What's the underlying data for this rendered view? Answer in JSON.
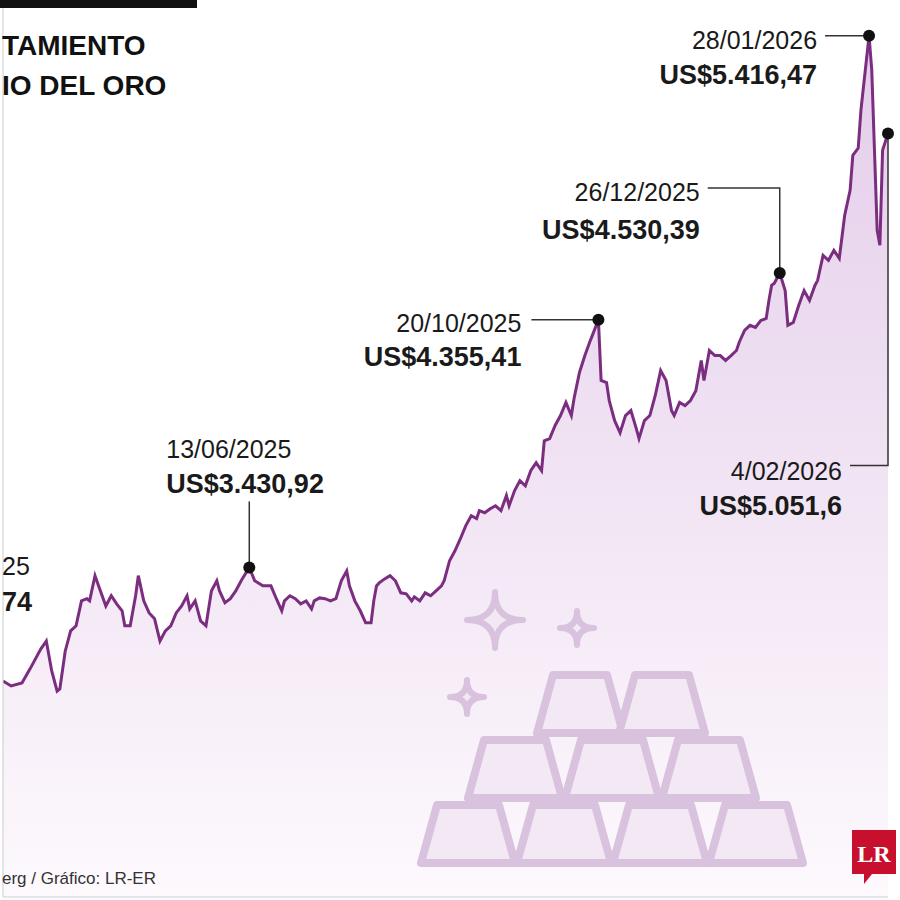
{
  "chart_data": {
    "type": "area",
    "title": "TAMIENTO\nIO DEL ORO",
    "source": "erg / Gráfico: LR-ER",
    "logo": "LR",
    "tick_labels": false,
    "grid": false,
    "xlim": [
      "2025-03-14",
      "2026-02-04"
    ],
    "ylim": [
      2200,
      5550
    ],
    "x": [
      "2025-03-14",
      "2025-03-17",
      "2025-03-21",
      "2025-03-24",
      "2025-03-28",
      "2025-03-30",
      "2025-04-01",
      "2025-04-03",
      "2025-04-04",
      "2025-04-06",
      "2025-04-08",
      "2025-04-10",
      "2025-04-12",
      "2025-04-14",
      "2025-04-15",
      "2025-04-17",
      "2025-04-19",
      "2025-04-21",
      "2025-04-23",
      "2025-04-25",
      "2025-04-27",
      "2025-04-28",
      "2025-04-30",
      "2025-05-02",
      "2025-05-03",
      "2025-05-05",
      "2025-05-07",
      "2025-05-09",
      "2025-05-11",
      "2025-05-13",
      "2025-05-15",
      "2025-05-17",
      "2025-05-19",
      "2025-05-21",
      "2025-05-22",
      "2025-05-24",
      "2025-05-26",
      "2025-05-28",
      "2025-05-30",
      "2025-06-01",
      "2025-06-02",
      "2025-06-04",
      "2025-06-06",
      "2025-06-08",
      "2025-06-10",
      "2025-06-13",
      "2025-06-15",
      "2025-06-18",
      "2025-06-21",
      "2025-06-23",
      "2025-06-25",
      "2025-06-26",
      "2025-06-28",
      "2025-06-30",
      "2025-07-02",
      "2025-07-04",
      "2025-07-06",
      "2025-07-07",
      "2025-07-09",
      "2025-07-11",
      "2025-07-13",
      "2025-07-15",
      "2025-07-17",
      "2025-07-19",
      "2025-07-20",
      "2025-07-22",
      "2025-07-24",
      "2025-07-26",
      "2025-07-28",
      "2025-07-29",
      "2025-07-30",
      "2025-07-31",
      "2025-08-02",
      "2025-08-04",
      "2025-08-06",
      "2025-08-08",
      "2025-08-10",
      "2025-08-12",
      "2025-08-13",
      "2025-08-15",
      "2025-08-17",
      "2025-08-19",
      "2025-08-21",
      "2025-08-23",
      "2025-08-24",
      "2025-08-26",
      "2025-08-28",
      "2025-08-30",
      "2025-09-01",
      "2025-09-03",
      "2025-09-05",
      "2025-09-06",
      "2025-09-08",
      "2025-09-10",
      "2025-09-12",
      "2025-09-14",
      "2025-09-16",
      "2025-09-17",
      "2025-09-19",
      "2025-09-21",
      "2025-09-23",
      "2025-09-25",
      "2025-09-27",
      "2025-09-29",
      "2025-09-30",
      "2025-10-02",
      "2025-10-04",
      "2025-10-06",
      "2025-10-08",
      "2025-10-10",
      "2025-10-11",
      "2025-10-13",
      "2025-10-15",
      "2025-10-17",
      "2025-10-20",
      "2025-10-21",
      "2025-10-23",
      "2025-10-24",
      "2025-10-26",
      "2025-10-28",
      "2025-10-30",
      "2025-11-01",
      "2025-11-03",
      "2025-11-04",
      "2025-11-06",
      "2025-11-08",
      "2025-11-10",
      "2025-11-12",
      "2025-11-14",
      "2025-11-16",
      "2025-11-17",
      "2025-11-19",
      "2025-11-21",
      "2025-11-23",
      "2025-11-25",
      "2025-11-27",
      "2025-11-28",
      "2025-11-30",
      "2025-12-02",
      "2025-12-04",
      "2025-12-06",
      "2025-12-08",
      "2025-12-10",
      "2025-12-11",
      "2025-12-13",
      "2025-12-15",
      "2025-12-17",
      "2025-12-19",
      "2025-12-21",
      "2025-12-22",
      "2025-12-23",
      "2025-12-24",
      "2025-12-26",
      "2025-12-28",
      "2025-12-29",
      "2025-12-31",
      "2026-01-02",
      "2026-01-04",
      "2026-01-06",
      "2026-01-08",
      "2026-01-09",
      "2026-01-11",
      "2026-01-13",
      "2026-01-15",
      "2026-01-17",
      "2026-01-19",
      "2026-01-21",
      "2026-01-22",
      "2026-01-24",
      "2026-01-25",
      "2026-01-28",
      "2026-01-29",
      "2026-01-30",
      "2026-01-31",
      "2026-02-01",
      "2026-02-02",
      "2026-02-04"
    ],
    "series": [
      {
        "color": "#7b2d7f",
        "values": [
          3007,
          2988,
          2999,
          3052,
          3127,
          3156,
          3044,
          2969,
          2977,
          3119,
          3194,
          3213,
          3306,
          3314,
          3306,
          3400,
          3343,
          3287,
          3325,
          3295,
          3269,
          3213,
          3213,
          3325,
          3400,
          3306,
          3261,
          3239,
          3156,
          3194,
          3213,
          3261,
          3287,
          3325,
          3276,
          3306,
          3231,
          3213,
          3343,
          3381,
          3343,
          3299,
          3314,
          3343,
          3381,
          3430.92,
          3381,
          3362,
          3362,
          3314,
          3269,
          3306,
          3325,
          3314,
          3295,
          3306,
          3276,
          3306,
          3317,
          3314,
          3306,
          3314,
          3381,
          3418,
          3362,
          3306,
          3269,
          3224,
          3224,
          3306,
          3362,
          3373,
          3388,
          3400,
          3381,
          3336,
          3332,
          3306,
          3321,
          3306,
          3336,
          3325,
          3343,
          3362,
          3381,
          3456,
          3493,
          3538,
          3587,
          3624,
          3613,
          3643,
          3635,
          3650,
          3661,
          3643,
          3699,
          3661,
          3717,
          3755,
          3736,
          3792,
          3822,
          3792,
          3904,
          3912,
          3961,
          3998,
          4047,
          3998,
          4062,
          4159,
          4222,
          4278,
          4355.41,
          4129,
          4121,
          4054,
          3979,
          3934,
          3998,
          4017,
          3949,
          3912,
          3979,
          3998,
          4073,
          4166,
          4129,
          4017,
          3998,
          4047,
          4035,
          4054,
          4091,
          4204,
          4129,
          4241,
          4222,
          4222,
          4204,
          4222,
          4241,
          4271,
          4316,
          4335,
          4327,
          4353,
          4361,
          4428,
          4484,
          4492,
          4530.39,
          4465,
          4335,
          4346,
          4409,
          4465,
          4428,
          4484,
          4503,
          4596,
          4578,
          4615,
          4585,
          4746,
          4839,
          4970,
          4997,
          5139,
          5416.47,
          5288,
          4989,
          4690,
          4634,
          4989,
          5051.6
        ]
      }
    ],
    "annotations": [
      {
        "x": "2025-06-13",
        "date": "13/06/2025",
        "label": "US$3.430,92"
      },
      {
        "x": "2025-10-20",
        "date": "20/10/2025",
        "label": "US$4.355,41"
      },
      {
        "x": "2025-12-26",
        "date": "26/12/2025",
        "label": "US$4.530,39"
      },
      {
        "x": "2026-01-28",
        "date": "28/01/2026",
        "label": "US$5.416,47"
      },
      {
        "x": "2026-02-04",
        "date": "4/02/2026",
        "label": "US$5.051,6"
      }
    ],
    "partial_annotation": {
      "date": "25",
      "label": "74"
    }
  }
}
